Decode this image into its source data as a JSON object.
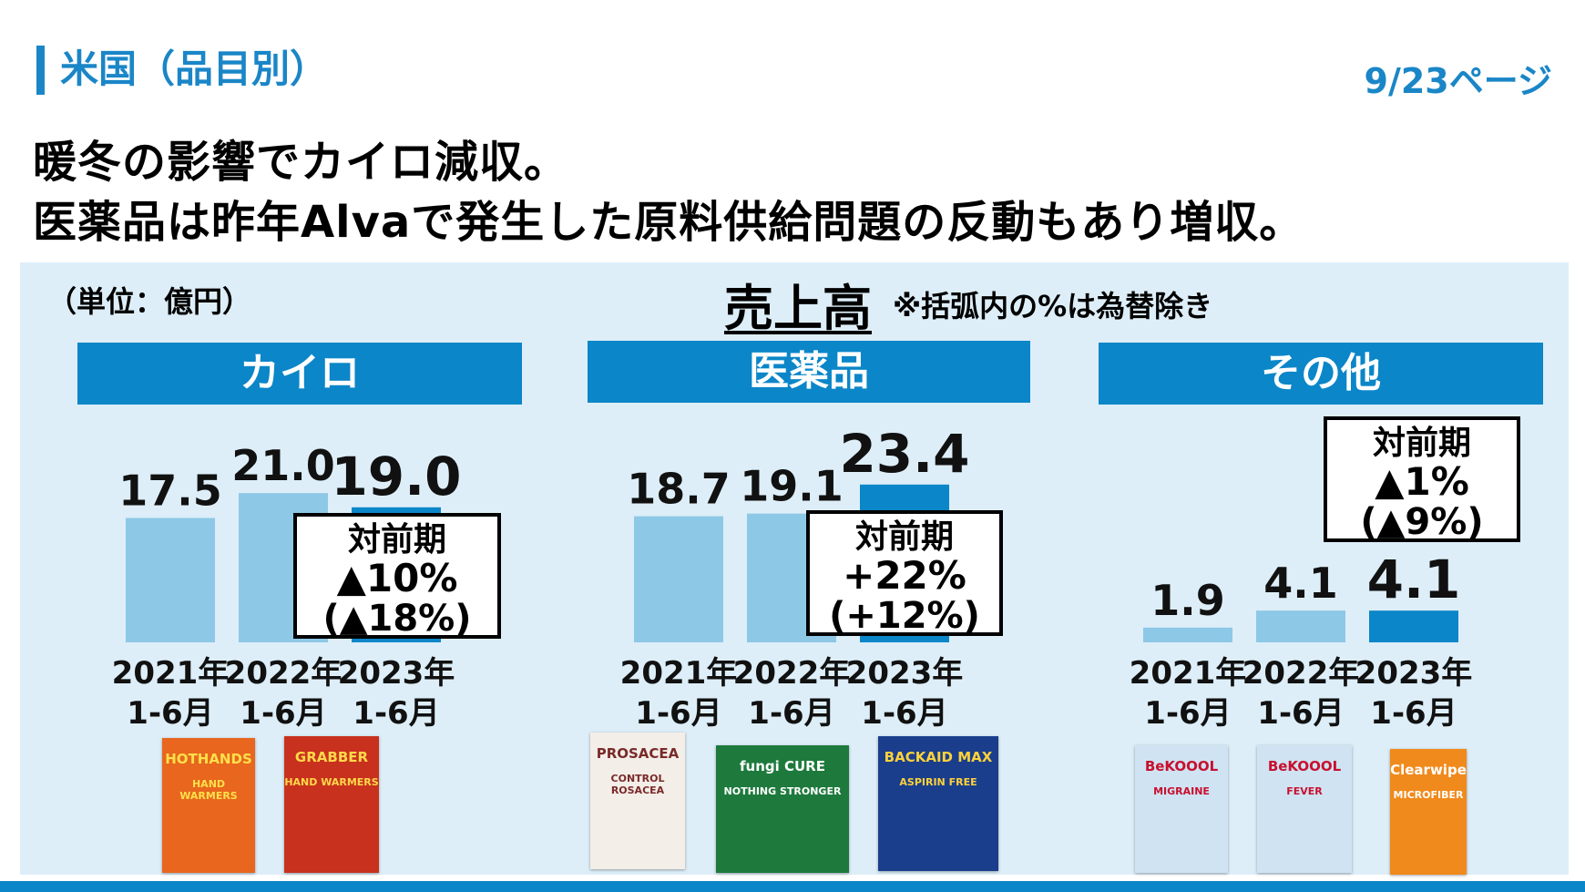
{
  "header": {
    "section_title": "米国（品目別）",
    "page_number": "9/23ページ"
  },
  "headline": {
    "line1": "暖冬の影響でカイロ減収。",
    "line2": "医薬品は昨年Alvaで発生した原料供給問題の反動もあり増収。"
  },
  "unit_label": "（単位：億円）",
  "sales_title": "売上高",
  "sales_note": "※括弧内の%は為替除き",
  "colors": {
    "brand": "#0b86c8",
    "bar_prior": "#8dc8e6",
    "bar_current": "#0b86c8",
    "panel_bg": "#ddeef8"
  },
  "chart_data": [
    {
      "type": "bar",
      "title": "カイロ",
      "categories": [
        "2021年\n1-6月",
        "2022年\n1-6月",
        "2023年\n1-6月"
      ],
      "values": [
        17.5,
        21.0,
        19.0
      ],
      "labels": [
        "17.5",
        "21.0",
        "19.0"
      ],
      "yoy": {
        "label": "対前期",
        "change": "▲10%",
        "ex_fx": "(▲18%)"
      }
    },
    {
      "type": "bar",
      "title": "医薬品",
      "categories": [
        "2021年\n1-6月",
        "2022年\n1-6月",
        "2023年\n1-6月"
      ],
      "values": [
        18.7,
        19.1,
        23.4
      ],
      "labels": [
        "18.7",
        "19.1",
        "23.4"
      ],
      "yoy": {
        "label": "対前期",
        "change": "+22%",
        "ex_fx": "(+12%)"
      }
    },
    {
      "type": "bar",
      "title": "その他",
      "categories": [
        "2021年\n1-6月",
        "2022年\n1-6月",
        "2023年\n1-6月"
      ],
      "values": [
        1.9,
        4.1,
        4.1
      ],
      "labels": [
        "1.9",
        "4.1",
        "4.1"
      ],
      "yoy": {
        "label": "対前期",
        "change": "▲1%",
        "ex_fx": "(▲9%)"
      }
    }
  ],
  "year_lines": [
    "2021年",
    "1-6月",
    "2022年",
    "1-6月",
    "2023年",
    "1-6月"
  ],
  "products": [
    {
      "name": "HOTHANDS",
      "sub": "HAND WARMERS",
      "bg": "#e8661e",
      "fg": "#ffe04a"
    },
    {
      "name": "GRABBER",
      "sub": "HAND WARMERS",
      "bg": "#c8311d",
      "fg": "#ffd84a"
    },
    {
      "name": "PROSACEA",
      "sub": "CONTROL ROSACEA",
      "bg": "#f3eee8",
      "fg": "#7a2a2a"
    },
    {
      "name": "fungi CURE",
      "sub": "NOTHING STRONGER",
      "bg": "#1d7a3c",
      "fg": "#ffffff"
    },
    {
      "name": "BACKAID MAX",
      "sub": "ASPIRIN FREE",
      "bg": "#1a3e8c",
      "fg": "#ffd23a"
    },
    {
      "name": "BeKOOOL",
      "sub": "MIGRAINE",
      "bg": "#cfe3f3",
      "fg": "#c8102e"
    },
    {
      "name": "BeKOOOL",
      "sub": "FEVER",
      "bg": "#cfe3f3",
      "fg": "#c8102e"
    },
    {
      "name": "Clearwipe",
      "sub": "MICROFIBER",
      "bg": "#f08a1c",
      "fg": "#ffffff"
    }
  ]
}
